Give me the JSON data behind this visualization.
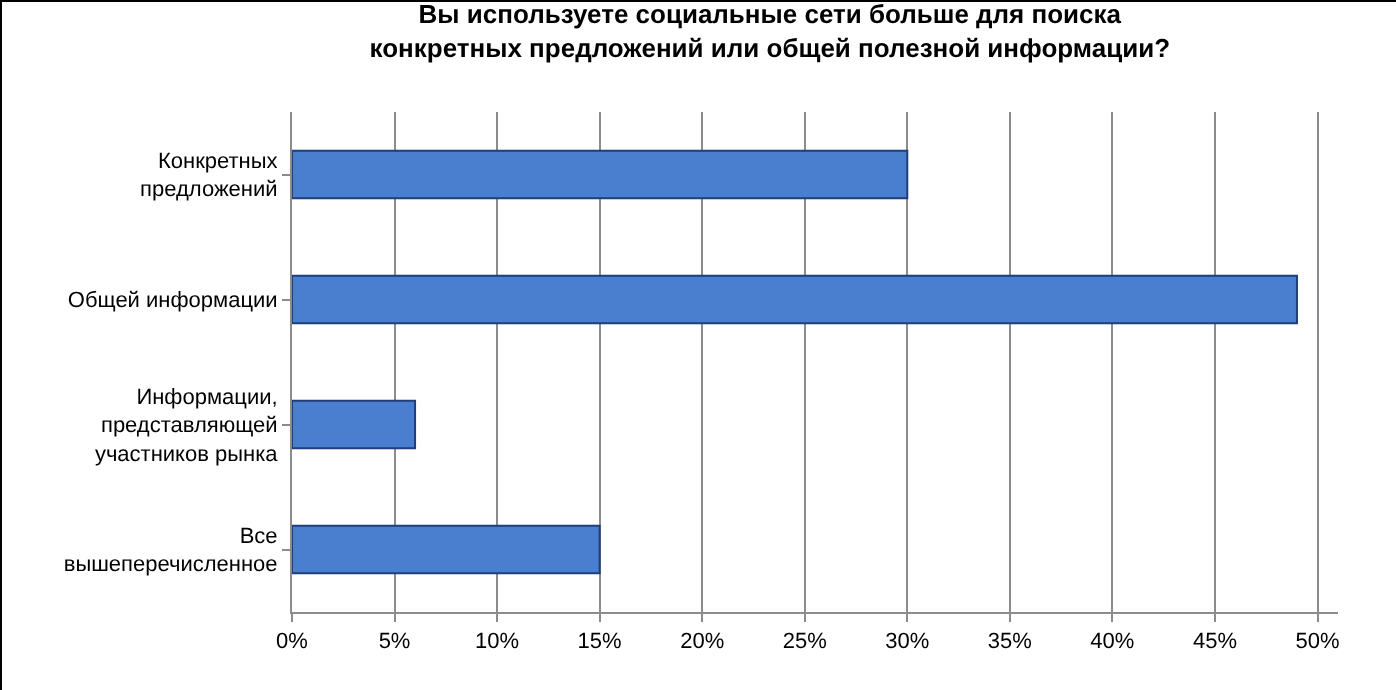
{
  "chart_data": {
    "type": "bar",
    "orientation": "horizontal",
    "title": "Вы используете социальные сети больше для поиска\nконкретных предложений или общей полезной информации?",
    "categories": [
      "Конкретных\nпредложений",
      "Общей информации",
      "Информации,\nпредставляющей\nучастников рынка",
      "Все\nвышеперечисленное"
    ],
    "values": [
      30,
      49,
      6,
      15
    ],
    "color": "#4a7fd0",
    "xlim": [
      0,
      51
    ],
    "xticks": [
      {
        "value": 0,
        "label": "0%"
      },
      {
        "value": 5,
        "label": "5%"
      },
      {
        "value": 10,
        "label": "10%"
      },
      {
        "value": 15,
        "label": "15%"
      },
      {
        "value": 20,
        "label": "20%"
      },
      {
        "value": 25,
        "label": "25%"
      },
      {
        "value": 30,
        "label": "30%"
      },
      {
        "value": 35,
        "label": "35%"
      },
      {
        "value": 40,
        "label": "40%"
      },
      {
        "value": 45,
        "label": "45%"
      },
      {
        "value": 50,
        "label": "50%"
      }
    ],
    "grid": "x",
    "legend": false
  }
}
